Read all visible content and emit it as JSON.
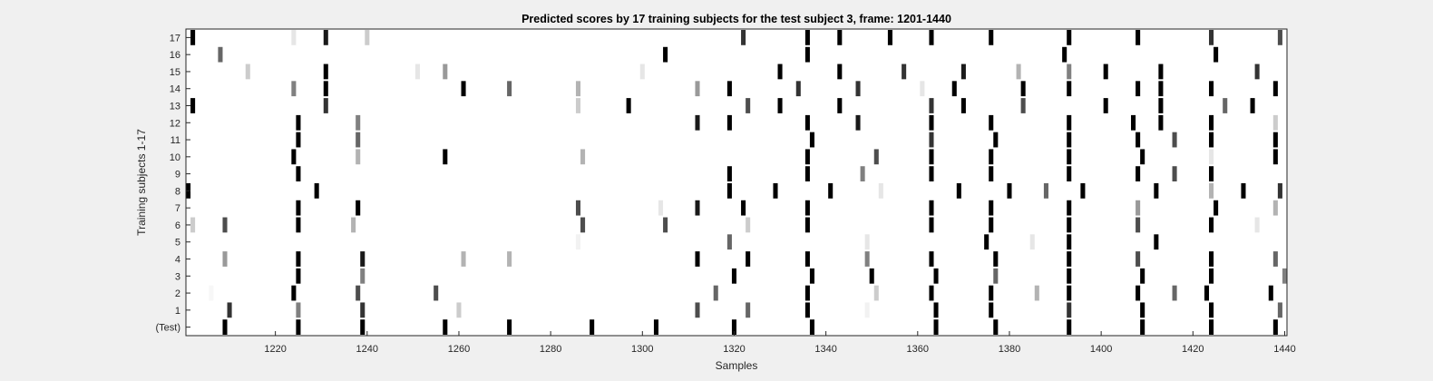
{
  "chart_data": {
    "type": "heatmap",
    "title": "Predicted scores by 17 training subjects for the test subject 3, frame: 1201-1440",
    "xlabel": "Samples",
    "ylabel": "Training subjects 1-17",
    "xlim": [
      1201,
      1440
    ],
    "x_ticks": [
      1220,
      1240,
      1260,
      1280,
      1300,
      1320,
      1340,
      1360,
      1380,
      1400,
      1420,
      1440
    ],
    "y_tick_labels": [
      "17",
      "16",
      "15",
      "14",
      "13",
      "12",
      "11",
      "10",
      "9",
      "8",
      "7",
      "6",
      "5",
      "4",
      "3",
      "2",
      "1",
      "(Test)"
    ],
    "colormap": "gray-reversed",
    "color_range": [
      0,
      1
    ],
    "note_mark_width_samples": 1,
    "rows": [
      {
        "label": "17",
        "marks": [
          [
            1202,
            1
          ],
          [
            1224,
            0.1
          ],
          [
            1231,
            0.9
          ],
          [
            1240,
            0.2
          ],
          [
            1322,
            0.8
          ],
          [
            1336,
            1
          ],
          [
            1343,
            1
          ],
          [
            1354,
            1
          ],
          [
            1363,
            1
          ],
          [
            1376,
            1
          ],
          [
            1393,
            1
          ],
          [
            1408,
            1
          ],
          [
            1424,
            0.8
          ],
          [
            1439,
            0.7
          ]
        ]
      },
      {
        "label": "16",
        "marks": [
          [
            1208,
            0.6
          ],
          [
            1305,
            1
          ],
          [
            1336,
            1
          ],
          [
            1392,
            1
          ],
          [
            1425,
            1
          ]
        ]
      },
      {
        "label": "15",
        "marks": [
          [
            1214,
            0.2
          ],
          [
            1231,
            1
          ],
          [
            1251,
            0.1
          ],
          [
            1257,
            0.4
          ],
          [
            1300,
            0.1
          ],
          [
            1330,
            1
          ],
          [
            1343,
            1
          ],
          [
            1357,
            0.8
          ],
          [
            1370,
            0.9
          ],
          [
            1382,
            0.3
          ],
          [
            1393,
            0.5
          ],
          [
            1401,
            1
          ],
          [
            1413,
            1
          ],
          [
            1434,
            0.8
          ]
        ]
      },
      {
        "label": "14",
        "marks": [
          [
            1224,
            0.5
          ],
          [
            1231,
            1
          ],
          [
            1261,
            1
          ],
          [
            1271,
            0.6
          ],
          [
            1286,
            0.3
          ],
          [
            1312,
            0.4
          ],
          [
            1319,
            1
          ],
          [
            1334,
            0.8
          ],
          [
            1347,
            0.8
          ],
          [
            1361,
            0.1
          ],
          [
            1368,
            1
          ],
          [
            1383,
            1
          ],
          [
            1393,
            1
          ],
          [
            1408,
            1
          ],
          [
            1413,
            1
          ],
          [
            1424,
            1
          ],
          [
            1438,
            1
          ]
        ]
      },
      {
        "label": "13",
        "marks": [
          [
            1202,
            1
          ],
          [
            1231,
            0.8
          ],
          [
            1286,
            0.2
          ],
          [
            1297,
            1
          ],
          [
            1323,
            0.7
          ],
          [
            1330,
            1
          ],
          [
            1343,
            1
          ],
          [
            1363,
            0.8
          ],
          [
            1370,
            1
          ],
          [
            1383,
            0.7
          ],
          [
            1401,
            1
          ],
          [
            1413,
            1
          ],
          [
            1427,
            0.6
          ],
          [
            1433,
            1
          ]
        ]
      },
      {
        "label": "12",
        "marks": [
          [
            1225,
            1
          ],
          [
            1238,
            0.5
          ],
          [
            1312,
            0.9
          ],
          [
            1319,
            1
          ],
          [
            1336,
            1
          ],
          [
            1347,
            0.9
          ],
          [
            1363,
            1
          ],
          [
            1376,
            1
          ],
          [
            1393,
            1
          ],
          [
            1407,
            1
          ],
          [
            1413,
            1
          ],
          [
            1424,
            1
          ],
          [
            1438,
            0.2
          ]
        ]
      },
      {
        "label": "11",
        "marks": [
          [
            1225,
            1
          ],
          [
            1238,
            0.6
          ],
          [
            1337,
            1
          ],
          [
            1363,
            0.8
          ],
          [
            1377,
            1
          ],
          [
            1393,
            1
          ],
          [
            1408,
            1
          ],
          [
            1416,
            0.7
          ],
          [
            1424,
            1
          ],
          [
            1438,
            1
          ]
        ]
      },
      {
        "label": "10",
        "marks": [
          [
            1224,
            1
          ],
          [
            1238,
            0.3
          ],
          [
            1257,
            1
          ],
          [
            1287,
            0.3
          ],
          [
            1336,
            1
          ],
          [
            1351,
            0.7
          ],
          [
            1363,
            1
          ],
          [
            1376,
            1
          ],
          [
            1393,
            1
          ],
          [
            1409,
            1
          ],
          [
            1424,
            0.1
          ],
          [
            1438,
            1
          ]
        ]
      },
      {
        "label": "9",
        "marks": [
          [
            1225,
            1
          ],
          [
            1319,
            1
          ],
          [
            1336,
            1
          ],
          [
            1348,
            0.5
          ],
          [
            1363,
            1
          ],
          [
            1376,
            1
          ],
          [
            1393,
            1
          ],
          [
            1408,
            1
          ],
          [
            1416,
            0.7
          ],
          [
            1424,
            1
          ]
        ]
      },
      {
        "label": "8",
        "marks": [
          [
            1201,
            1
          ],
          [
            1229,
            1
          ],
          [
            1319,
            1
          ],
          [
            1329,
            1
          ],
          [
            1341,
            1
          ],
          [
            1352,
            0.1
          ],
          [
            1369,
            1
          ],
          [
            1380,
            1
          ],
          [
            1388,
            0.6
          ],
          [
            1396,
            1
          ],
          [
            1412,
            1
          ],
          [
            1424,
            0.3
          ],
          [
            1431,
            1
          ],
          [
            1439,
            0.8
          ]
        ]
      },
      {
        "label": "7",
        "marks": [
          [
            1225,
            1
          ],
          [
            1238,
            1
          ],
          [
            1286,
            0.7
          ],
          [
            1304,
            0.1
          ],
          [
            1312,
            0.9
          ],
          [
            1322,
            1
          ],
          [
            1336,
            1
          ],
          [
            1363,
            1
          ],
          [
            1376,
            1
          ],
          [
            1393,
            1
          ],
          [
            1408,
            0.4
          ],
          [
            1425,
            1
          ],
          [
            1438,
            0.3
          ]
        ]
      },
      {
        "label": "6",
        "marks": [
          [
            1202,
            0.2
          ],
          [
            1209,
            0.7
          ],
          [
            1225,
            1
          ],
          [
            1237,
            0.3
          ],
          [
            1287,
            0.7
          ],
          [
            1305,
            0.7
          ],
          [
            1323,
            0.2
          ],
          [
            1336,
            1
          ],
          [
            1363,
            1
          ],
          [
            1376,
            1
          ],
          [
            1393,
            1
          ],
          [
            1408,
            0.7
          ],
          [
            1424,
            1
          ],
          [
            1434,
            0.1
          ]
        ]
      },
      {
        "label": "5",
        "marks": [
          [
            1286,
            0.05
          ],
          [
            1319,
            0.6
          ],
          [
            1349,
            0.1
          ],
          [
            1375,
            1
          ],
          [
            1385,
            0.1
          ],
          [
            1393,
            1
          ],
          [
            1412,
            1
          ]
        ]
      },
      {
        "label": "4",
        "marks": [
          [
            1209,
            0.4
          ],
          [
            1225,
            1
          ],
          [
            1239,
            0.9
          ],
          [
            1261,
            0.3
          ],
          [
            1271,
            0.3
          ],
          [
            1312,
            1
          ],
          [
            1323,
            1
          ],
          [
            1336,
            1
          ],
          [
            1349,
            0.5
          ],
          [
            1363,
            1
          ],
          [
            1377,
            1
          ],
          [
            1393,
            1
          ],
          [
            1408,
            0.7
          ],
          [
            1424,
            1
          ],
          [
            1438,
            0.6
          ]
        ]
      },
      {
        "label": "3",
        "marks": [
          [
            1225,
            1
          ],
          [
            1239,
            0.5
          ],
          [
            1320,
            1
          ],
          [
            1337,
            1
          ],
          [
            1350,
            1
          ],
          [
            1364,
            1
          ],
          [
            1377,
            0.6
          ],
          [
            1393,
            1
          ],
          [
            1409,
            1
          ],
          [
            1424,
            1
          ],
          [
            1440,
            0.5
          ]
        ]
      },
      {
        "label": "2",
        "marks": [
          [
            1206,
            0.03
          ],
          [
            1224,
            1
          ],
          [
            1238,
            0.7
          ],
          [
            1255,
            0.7
          ],
          [
            1316,
            0.6
          ],
          [
            1336,
            1
          ],
          [
            1351,
            0.2
          ],
          [
            1363,
            1
          ],
          [
            1376,
            1
          ],
          [
            1386,
            0.3
          ],
          [
            1393,
            1
          ],
          [
            1408,
            1
          ],
          [
            1416,
            0.6
          ],
          [
            1423,
            1
          ],
          [
            1437,
            1
          ]
        ]
      },
      {
        "label": "1",
        "marks": [
          [
            1210,
            0.8
          ],
          [
            1225,
            0.5
          ],
          [
            1239,
            0.8
          ],
          [
            1260,
            0.2
          ],
          [
            1312,
            0.7
          ],
          [
            1323,
            0.6
          ],
          [
            1336,
            1
          ],
          [
            1349,
            0.05
          ],
          [
            1364,
            1
          ],
          [
            1376,
            1
          ],
          [
            1393,
            0.8
          ],
          [
            1409,
            1
          ],
          [
            1424,
            1
          ],
          [
            1439,
            0.6
          ]
        ]
      },
      {
        "label": "(Test)",
        "marks": [
          [
            1209,
            1
          ],
          [
            1225,
            1
          ],
          [
            1239,
            1
          ],
          [
            1257,
            1
          ],
          [
            1271,
            1
          ],
          [
            1289,
            1
          ],
          [
            1303,
            1
          ],
          [
            1320,
            1
          ],
          [
            1337,
            1
          ],
          [
            1364,
            1
          ],
          [
            1377,
            1
          ],
          [
            1393,
            1
          ],
          [
            1409,
            1
          ],
          [
            1424,
            1
          ],
          [
            1438,
            1
          ]
        ]
      }
    ]
  }
}
